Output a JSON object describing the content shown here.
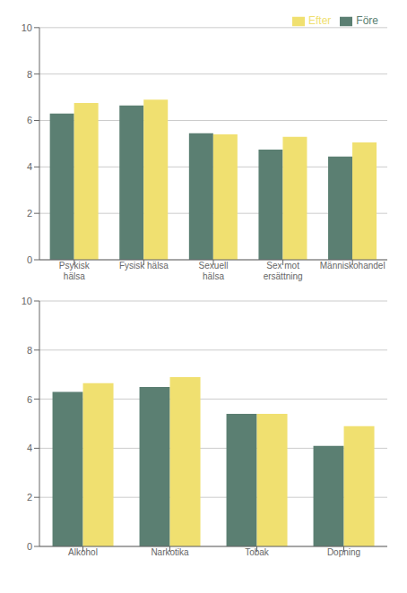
{
  "chart_data": [
    {
      "type": "bar",
      "categories": [
        "Psykisk hälsa",
        "Fysisk hälsa",
        "Sexuell hälsa",
        "Sex mot ersättning",
        "Människohandel"
      ],
      "series": [
        {
          "name": "Före",
          "color": "#5b7f72",
          "values": [
            6.3,
            6.65,
            5.45,
            4.75,
            4.45
          ]
        },
        {
          "name": "Efter",
          "color": "#f0e070",
          "values": [
            6.75,
            6.9,
            5.4,
            5.3,
            5.05
          ]
        }
      ],
      "ylim": [
        0,
        10
      ],
      "yticks": [
        0,
        2,
        4,
        6,
        8,
        10
      ],
      "grid": true,
      "legend": "upper right"
    },
    {
      "type": "bar",
      "categories": [
        "Alkohol",
        "Narkotika",
        "Tobak",
        "Dopning"
      ],
      "series": [
        {
          "name": "Före",
          "color": "#5b7f72",
          "values": [
            6.3,
            6.5,
            5.4,
            4.1
          ]
        },
        {
          "name": "Efter",
          "color": "#f0e070",
          "values": [
            6.65,
            6.9,
            5.4,
            4.9
          ]
        }
      ],
      "ylim": [
        0,
        10
      ],
      "yticks": [
        0,
        2,
        4,
        6,
        8,
        10
      ],
      "grid": true
    }
  ]
}
